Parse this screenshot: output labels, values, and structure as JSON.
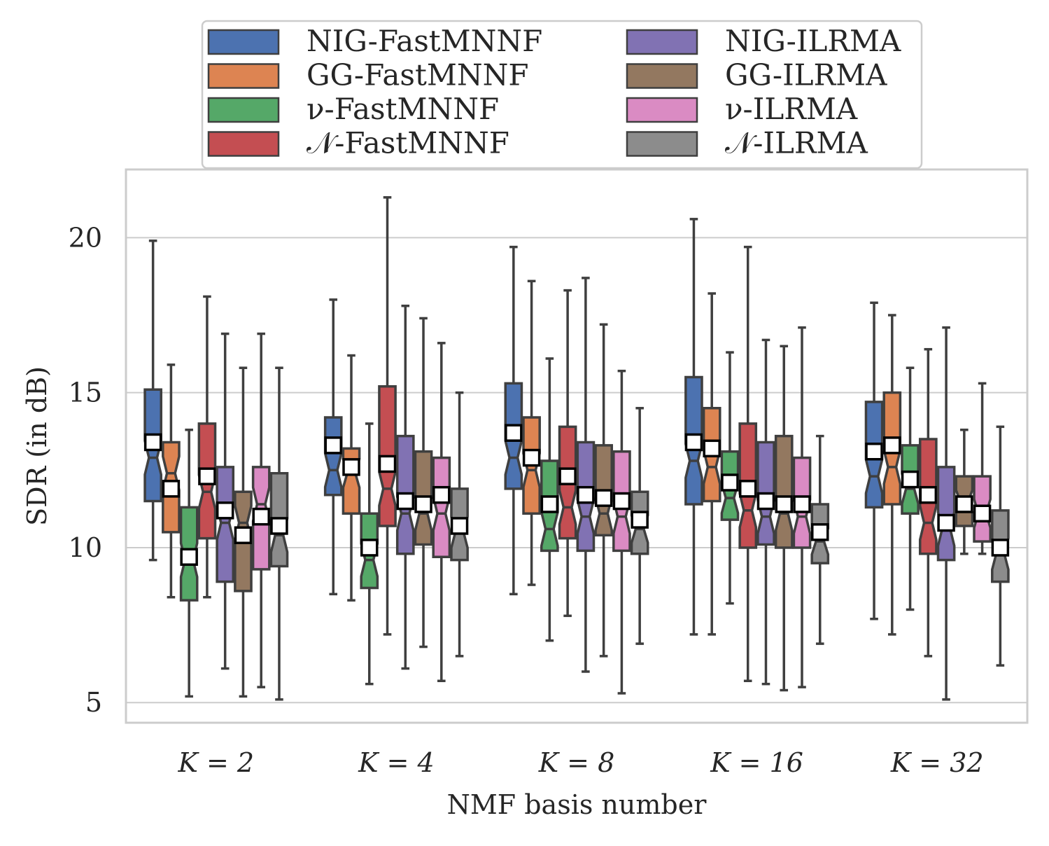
{
  "chart_data": {
    "type": "boxplot",
    "title": "",
    "xlabel": "NMF basis number",
    "ylabel": "SDR (in dB)",
    "ylim": [
      4.35,
      22.2
    ],
    "yticks": [
      5,
      10,
      15,
      20
    ],
    "grid": "horizontal",
    "legend_position": "top",
    "categories": [
      "K = 2",
      "K = 4",
      "K = 8",
      "K = 16",
      "K = 32"
    ],
    "series": [
      {
        "name": "NIG-FastMNNF",
        "color": "#4C72B0",
        "boxes": [
          {
            "whislo": 9.6,
            "q1": 11.5,
            "med": 12.9,
            "mean": 13.4,
            "q3": 15.1,
            "whishi": 19.9
          },
          {
            "whislo": 8.5,
            "q1": 11.7,
            "med": 12.5,
            "mean": 13.3,
            "q3": 14.2,
            "whishi": 18.0
          },
          {
            "whislo": 8.5,
            "q1": 11.9,
            "med": 12.9,
            "mean": 13.7,
            "q3": 15.3,
            "whishi": 19.7
          },
          {
            "whislo": 7.2,
            "q1": 11.4,
            "med": 12.8,
            "mean": 13.4,
            "q3": 15.5,
            "whishi": 20.6
          },
          {
            "whislo": 7.7,
            "q1": 11.3,
            "med": 12.3,
            "mean": 13.1,
            "q3": 14.7,
            "whishi": 17.9
          }
        ]
      },
      {
        "name": "GG-FastMNNF",
        "color": "#DD8452",
        "boxes": [
          {
            "whislo": 8.4,
            "q1": 10.5,
            "med": 12.4,
            "mean": 11.9,
            "q3": 13.4,
            "whishi": 15.9
          },
          {
            "whislo": 8.3,
            "q1": 11.1,
            "med": 12.4,
            "mean": 12.6,
            "q3": 13.2,
            "whishi": 16.2
          },
          {
            "whislo": 8.8,
            "q1": 11.1,
            "med": 12.5,
            "mean": 12.9,
            "q3": 14.2,
            "whishi": 18.6
          },
          {
            "whislo": 7.2,
            "q1": 11.5,
            "med": 12.6,
            "mean": 13.2,
            "q3": 14.5,
            "whishi": 18.2
          },
          {
            "whislo": 7.2,
            "q1": 11.4,
            "med": 12.6,
            "mean": 13.3,
            "q3": 15.0,
            "whishi": 17.5
          }
        ]
      },
      {
        "name": "ν-FastMNNF",
        "color": "#55A868",
        "boxes": [
          {
            "whislo": 5.2,
            "q1": 8.3,
            "med": 9.6,
            "mean": 9.7,
            "q3": 11.3,
            "whishi": 13.8
          },
          {
            "whislo": 5.6,
            "q1": 8.7,
            "med": 9.6,
            "mean": 10.0,
            "q3": 11.1,
            "whishi": 14.0
          },
          {
            "whislo": 7.0,
            "q1": 9.9,
            "med": 10.6,
            "mean": 11.4,
            "q3": 12.8,
            "whishi": 16.1
          },
          {
            "whislo": 8.2,
            "q1": 10.9,
            "med": 11.6,
            "mean": 12.1,
            "q3": 13.1,
            "whishi": 16.3
          },
          {
            "whislo": 8.0,
            "q1": 11.1,
            "med": 11.9,
            "mean": 12.2,
            "q3": 13.3,
            "whishi": 15.8
          }
        ]
      },
      {
        "name": "𝒩-FastMNNF",
        "color": "#C44E52",
        "boxes": [
          {
            "whislo": 8.4,
            "q1": 10.3,
            "med": 11.8,
            "mean": 12.3,
            "q3": 14.0,
            "whishi": 18.1
          },
          {
            "whislo": 7.2,
            "q1": 10.7,
            "med": 11.9,
            "mean": 12.7,
            "q3": 15.2,
            "whishi": 21.3
          },
          {
            "whislo": 7.8,
            "q1": 10.3,
            "med": 11.3,
            "mean": 12.3,
            "q3": 13.9,
            "whishi": 18.3
          },
          {
            "whislo": 5.7,
            "q1": 10.0,
            "med": 11.2,
            "mean": 11.9,
            "q3": 14.0,
            "whishi": 19.7
          },
          {
            "whislo": 6.5,
            "q1": 9.8,
            "med": 10.8,
            "mean": 11.7,
            "q3": 13.5,
            "whishi": 16.4
          }
        ]
      },
      {
        "name": "NIG-ILRMA",
        "color": "#8172B3",
        "boxes": [
          {
            "whislo": 6.1,
            "q1": 8.9,
            "med": 10.8,
            "mean": 11.2,
            "q3": 12.6,
            "whishi": 16.9
          },
          {
            "whislo": 6.1,
            "q1": 9.8,
            "med": 11.1,
            "mean": 11.5,
            "q3": 13.6,
            "whishi": 17.8
          },
          {
            "whislo": 6.0,
            "q1": 9.9,
            "med": 11.0,
            "mean": 11.7,
            "q3": 13.4,
            "whishi": 18.7
          },
          {
            "whislo": 5.6,
            "q1": 10.1,
            "med": 11.0,
            "mean": 11.5,
            "q3": 13.4,
            "whishi": 16.7
          },
          {
            "whislo": 5.1,
            "q1": 9.6,
            "med": 10.6,
            "mean": 10.8,
            "q3": 12.6,
            "whishi": 17.1
          }
        ]
      },
      {
        "name": "GG-ILRMA",
        "color": "#937860",
        "boxes": [
          {
            "whislo": 5.2,
            "q1": 8.6,
            "med": 10.8,
            "mean": 10.4,
            "q3": 11.8,
            "whishi": 15.8
          },
          {
            "whislo": 6.8,
            "q1": 10.1,
            "med": 11.1,
            "mean": 11.4,
            "q3": 13.1,
            "whishi": 17.4
          },
          {
            "whislo": 6.5,
            "q1": 10.4,
            "med": 11.1,
            "mean": 11.6,
            "q3": 13.3,
            "whishi": 17.2
          },
          {
            "whislo": 5.4,
            "q1": 10.0,
            "med": 11.1,
            "mean": 11.4,
            "q3": 13.6,
            "whishi": 16.5
          },
          {
            "whislo": 9.8,
            "q1": 10.7,
            "med": 11.5,
            "mean": 11.4,
            "q3": 12.3,
            "whishi": 13.8
          }
        ]
      },
      {
        "name": "ν-ILRMA",
        "color": "#DA8BC3",
        "boxes": [
          {
            "whislo": 5.5,
            "q1": 9.3,
            "med": 11.4,
            "mean": 11.0,
            "q3": 12.6,
            "whishi": 16.9
          },
          {
            "whislo": 5.7,
            "q1": 9.7,
            "med": 11.1,
            "mean": 11.7,
            "q3": 12.9,
            "whishi": 16.6
          },
          {
            "whislo": 5.3,
            "q1": 9.9,
            "med": 11.0,
            "mean": 11.5,
            "q3": 13.1,
            "whishi": 15.7
          },
          {
            "whislo": 5.5,
            "q1": 10.0,
            "med": 11.0,
            "mean": 11.4,
            "q3": 12.9,
            "whishi": 17.1
          },
          {
            "whislo": 9.8,
            "q1": 10.2,
            "med": 11.1,
            "mean": 11.1,
            "q3": 12.3,
            "whishi": 15.3
          }
        ]
      },
      {
        "name": "𝒩-ILRMA",
        "color": "#8C8C8C",
        "boxes": [
          {
            "whislo": 5.1,
            "q1": 9.4,
            "med": 10.4,
            "mean": 10.7,
            "q3": 12.4,
            "whishi": 15.8
          },
          {
            "whislo": 6.5,
            "q1": 9.6,
            "med": 10.5,
            "mean": 10.7,
            "q3": 11.9,
            "whishi": 15.0
          },
          {
            "whislo": 6.9,
            "q1": 9.8,
            "med": 10.6,
            "mean": 10.9,
            "q3": 11.8,
            "whishi": 14.5
          },
          {
            "whislo": 6.9,
            "q1": 9.5,
            "med": 10.2,
            "mean": 10.5,
            "q3": 11.4,
            "whishi": 13.6
          },
          {
            "whislo": 6.2,
            "q1": 8.9,
            "med": 9.8,
            "mean": 10.0,
            "q3": 11.2,
            "whishi": 13.9
          }
        ]
      }
    ]
  }
}
